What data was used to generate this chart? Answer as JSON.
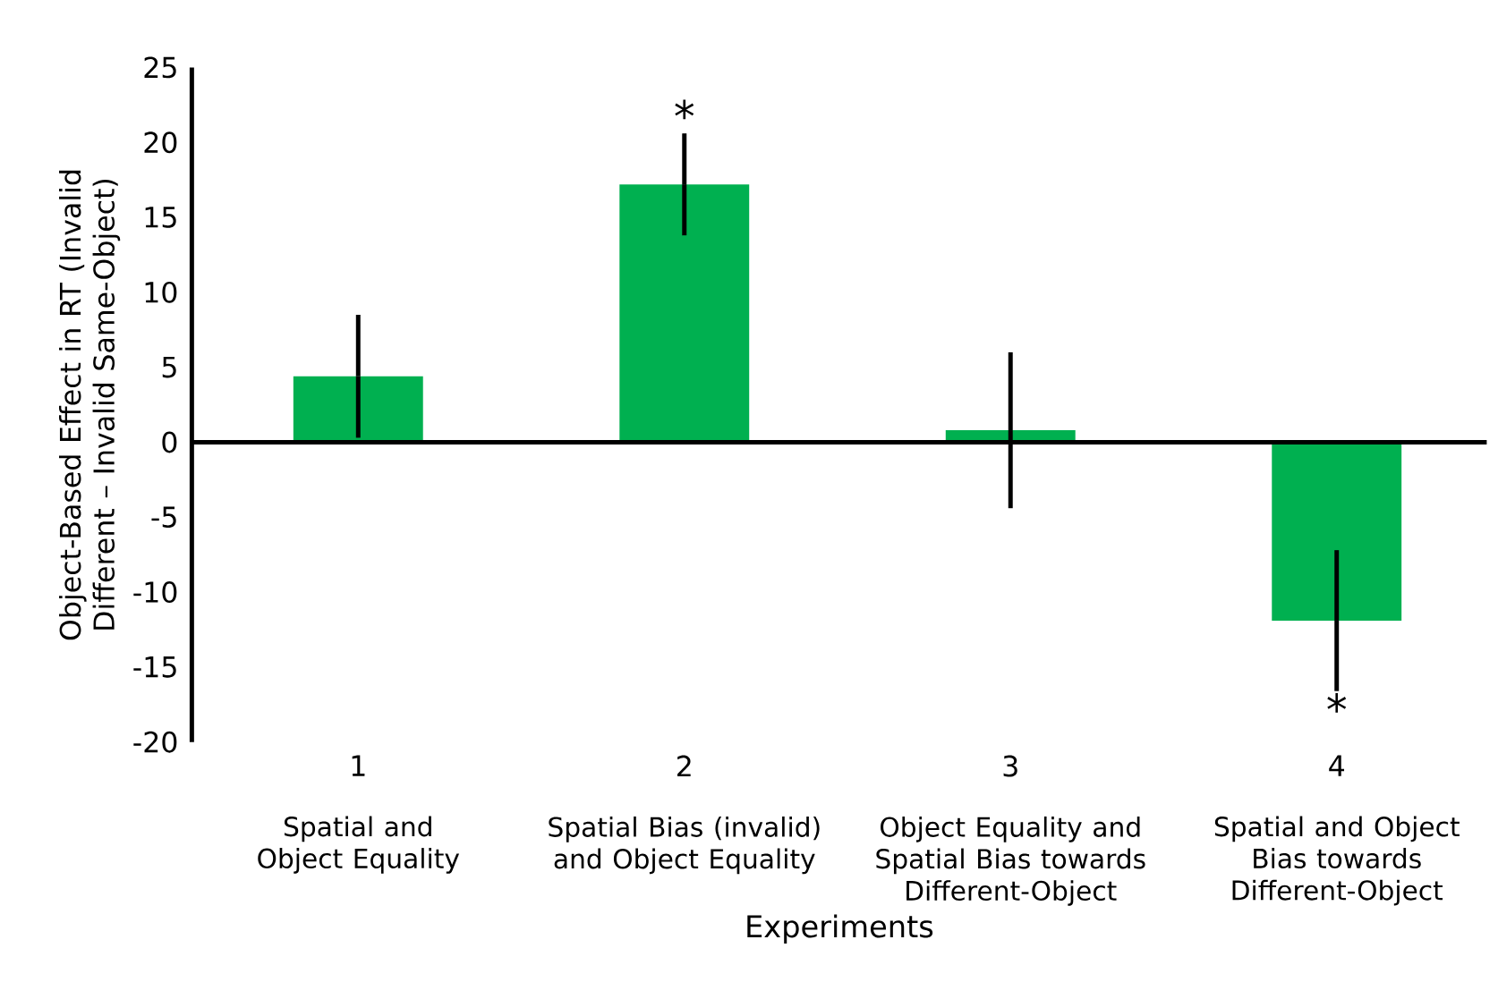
{
  "chart_data": {
    "type": "bar",
    "xlabel": "Experiments",
    "ylabel": "Object-Based Effect in RT (Invalid Different – Invalid Same-Object)",
    "categories": [
      "1",
      "2",
      "3",
      "4"
    ],
    "values": [
      4.4,
      17.2,
      0.8,
      -11.9
    ],
    "errors": [
      4.1,
      3.4,
      5.2,
      4.7
    ],
    "color": "#00b050",
    "ylim": [
      -20,
      25
    ],
    "yticks": [
      -20,
      -15,
      -10,
      -5,
      0,
      5,
      10,
      15,
      20,
      25
    ],
    "value_labels": [
      null,
      "*",
      null,
      "*"
    ],
    "annotations": [
      "Spatial and Object Equality",
      "Spatial Bias (invalid) and Object Equality",
      "Object Equality and Spatial Bias towards Different-Object",
      "Spatial and Object Bias towards Different-Object"
    ]
  }
}
